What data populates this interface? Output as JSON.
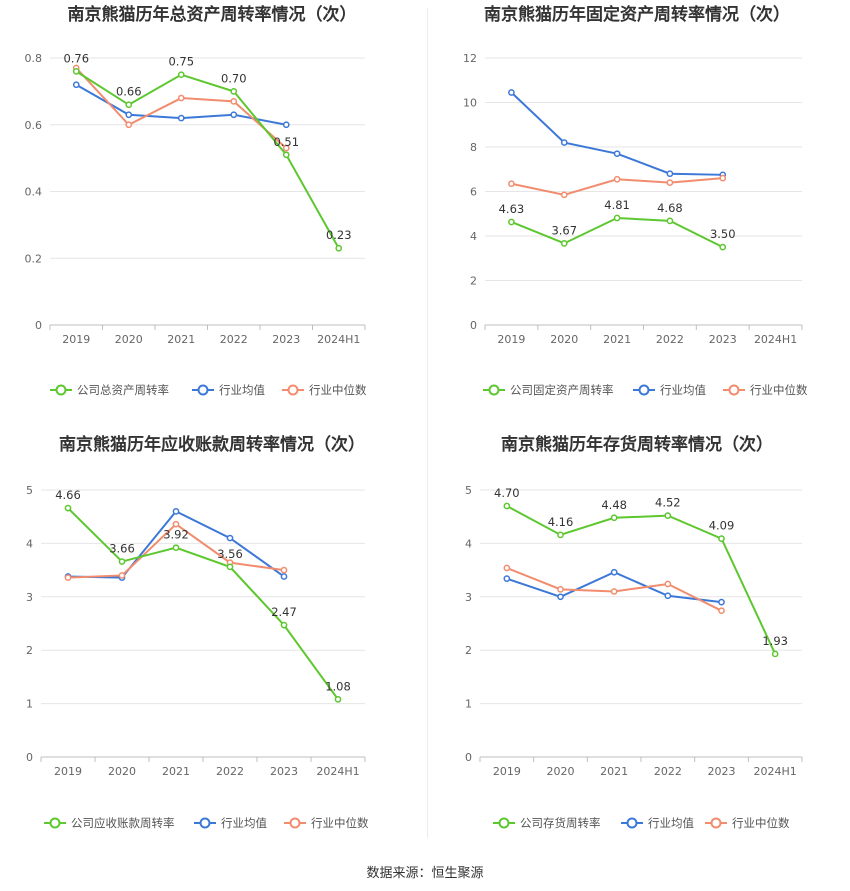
{
  "footer": "数据来源：恒生聚源",
  "colors": {
    "company": "#5cc72e",
    "avg": "#3c78d8",
    "median": "#f28c6e"
  },
  "chart_data": [
    {
      "type": "line",
      "title": "南京熊猫历年总资产周转率情况（次）",
      "categories": [
        "2019",
        "2020",
        "2021",
        "2022",
        "2023",
        "2024H1"
      ],
      "ylim": [
        0,
        0.8
      ],
      "yticks": [
        "0",
        "0.2",
        "0.4",
        "0.6",
        "0.8"
      ],
      "ytick_values": [
        0,
        0.2,
        0.4,
        0.6,
        0.8
      ],
      "series": [
        {
          "name": "公司总资产周转率",
          "key": "company",
          "values": [
            0.76,
            0.66,
            0.75,
            0.7,
            0.51,
            0.23
          ],
          "labels": [
            "0.76",
            "0.66",
            "0.75",
            "0.70",
            "0.51",
            "0.23"
          ]
        },
        {
          "name": "行业均值",
          "key": "avg",
          "values": [
            0.72,
            0.63,
            0.62,
            0.63,
            0.6,
            null
          ]
        },
        {
          "name": "行业中位数",
          "key": "median",
          "values": [
            0.77,
            0.6,
            0.68,
            0.67,
            0.53,
            null
          ]
        }
      ]
    },
    {
      "type": "line",
      "title": "南京熊猫历年固定资产周转率情况（次）",
      "categories": [
        "2019",
        "2020",
        "2021",
        "2022",
        "2023",
        "2024H1"
      ],
      "ylim": [
        0,
        12
      ],
      "yticks": [
        "0",
        "2",
        "4",
        "6",
        "8",
        "10",
        "12"
      ],
      "ytick_values": [
        0,
        2,
        4,
        6,
        8,
        10,
        12
      ],
      "series": [
        {
          "name": "公司固定资产周转率",
          "key": "company",
          "values": [
            4.63,
            3.67,
            4.81,
            4.68,
            3.5,
            null
          ],
          "labels": [
            "4.63",
            "3.67",
            "4.81",
            "4.68",
            "3.50",
            ""
          ]
        },
        {
          "name": "行业均值",
          "key": "avg",
          "values": [
            10.45,
            8.2,
            7.7,
            6.8,
            6.75,
            null
          ]
        },
        {
          "name": "行业中位数",
          "key": "median",
          "values": [
            6.35,
            5.85,
            6.55,
            6.4,
            6.6,
            null
          ]
        }
      ]
    },
    {
      "type": "line",
      "title": "南京熊猫历年应收账款周转率情况（次）",
      "categories": [
        "2019",
        "2020",
        "2021",
        "2022",
        "2023",
        "2024H1"
      ],
      "ylim": [
        0,
        5
      ],
      "yticks": [
        "0",
        "1",
        "2",
        "3",
        "4",
        "5"
      ],
      "ytick_values": [
        0,
        1,
        2,
        3,
        4,
        5
      ],
      "series": [
        {
          "name": "公司应收账款周转率",
          "key": "company",
          "values": [
            4.66,
            3.66,
            3.92,
            3.56,
            2.47,
            1.08
          ],
          "labels": [
            "4.66",
            "3.66",
            "3.92",
            "3.56",
            "2.47",
            "1.08"
          ]
        },
        {
          "name": "行业均值",
          "key": "avg",
          "values": [
            3.38,
            3.36,
            4.6,
            4.1,
            3.38,
            null
          ]
        },
        {
          "name": "行业中位数",
          "key": "median",
          "values": [
            3.36,
            3.4,
            4.36,
            3.64,
            3.5,
            null
          ]
        }
      ]
    },
    {
      "type": "line",
      "title": "南京熊猫历年存货周转率情况（次）",
      "categories": [
        "2019",
        "2020",
        "2021",
        "2022",
        "2023",
        "2024H1"
      ],
      "ylim": [
        0,
        5
      ],
      "yticks": [
        "0",
        "1",
        "2",
        "3",
        "4",
        "5"
      ],
      "ytick_values": [
        0,
        1,
        2,
        3,
        4,
        5
      ],
      "series": [
        {
          "name": "公司存货周转率",
          "key": "company",
          "values": [
            4.7,
            4.16,
            4.48,
            4.52,
            4.09,
            1.93
          ],
          "labels": [
            "4.70",
            "4.16",
            "4.48",
            "4.52",
            "4.09",
            "1.93"
          ]
        },
        {
          "name": "行业均值",
          "key": "avg",
          "values": [
            3.34,
            3.0,
            3.46,
            3.02,
            2.9,
            null
          ]
        },
        {
          "name": "行业中位数",
          "key": "median",
          "values": [
            3.54,
            3.14,
            3.1,
            3.24,
            2.74,
            null
          ]
        }
      ]
    }
  ]
}
